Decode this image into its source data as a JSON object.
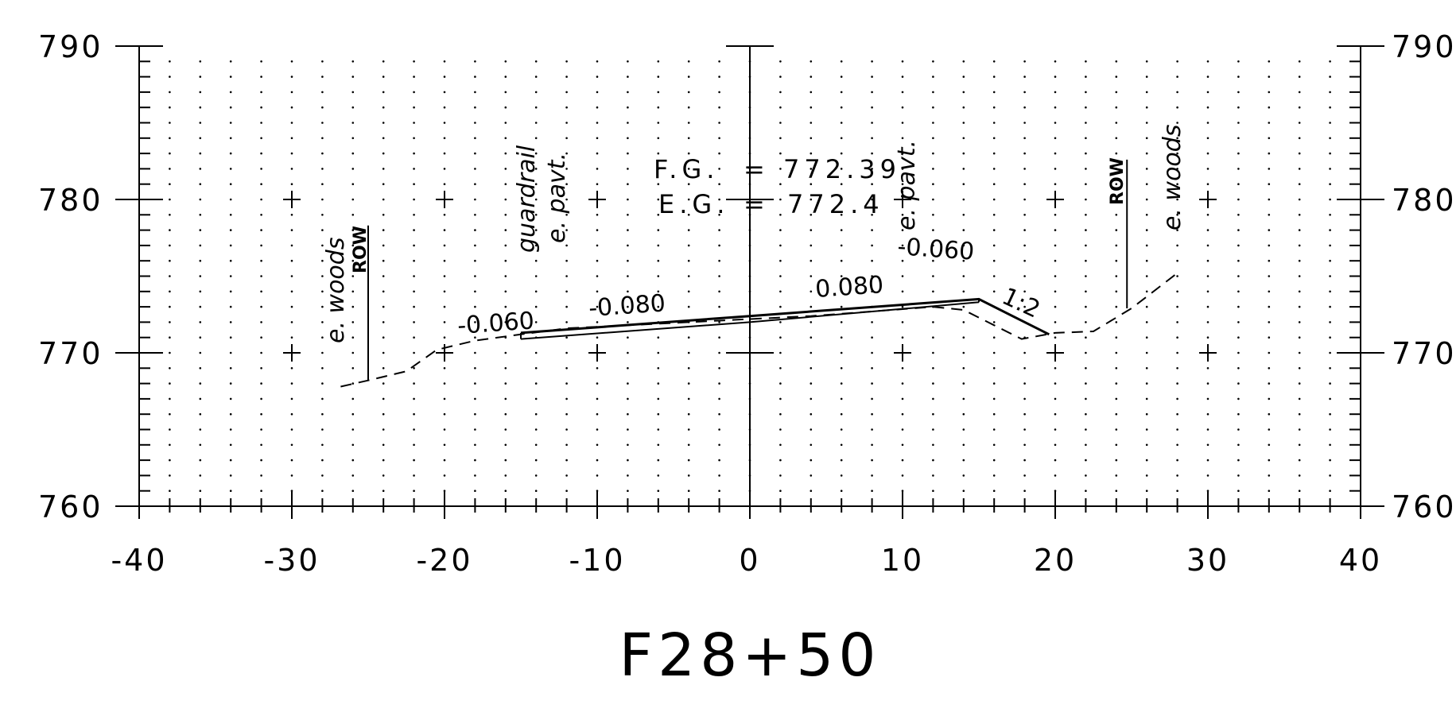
{
  "drawing": {
    "station": "F28+50",
    "x_ticks": [
      "-40",
      "-30",
      "-20",
      "-10",
      "0",
      "10",
      "20",
      "30",
      "40"
    ],
    "y_ticks_left": [
      "790",
      "780",
      "770",
      "760"
    ],
    "y_ticks_right": [
      "790",
      "780",
      "770",
      "760"
    ],
    "grades": {
      "fg_label": "F.G.",
      "fg_eq": "=",
      "fg_value": "772.39",
      "eg_label": "E.G.",
      "eg_eq": "=",
      "eg_value": "772.4"
    },
    "annotations": {
      "woods_left": "e. woods",
      "row_left": "ROW",
      "guardrail": "guardrail",
      "pavt_left": "e. pavt.",
      "pavt_right": "e. pavt.",
      "row_right": "ROW",
      "woods_right": "e. woods"
    },
    "slopes": {
      "s1": "-0.060",
      "s2": "-0.080",
      "s3": "0.080",
      "s4": "-0.060",
      "side": "1:2"
    }
  },
  "chart_data": {
    "type": "cross-section",
    "x_range": [
      -40,
      40
    ],
    "y_range": [
      760,
      790
    ],
    "grid": "dotted",
    "existing_ground": {
      "style": "dashed",
      "points": [
        [
          -26.8,
          767.8
        ],
        [
          -25,
          768.2
        ],
        [
          -22.5,
          768.8
        ],
        [
          -20.5,
          770.2
        ],
        [
          -18,
          770.8
        ],
        [
          -15,
          771.2
        ],
        [
          -12,
          771.6
        ],
        [
          -8,
          771.8
        ],
        [
          -4,
          772.0
        ],
        [
          0,
          772.2
        ],
        [
          4,
          772.4
        ],
        [
          8,
          772.7
        ],
        [
          12,
          773.0
        ],
        [
          14,
          772.8
        ],
        [
          16,
          771.8
        ],
        [
          17.8,
          770.9
        ],
        [
          20,
          771.3
        ],
        [
          22.5,
          771.4
        ],
        [
          25,
          772.9
        ],
        [
          28,
          775.2
        ]
      ]
    },
    "finished_grade_top": {
      "points": [
        [
          -15,
          771.3
        ],
        [
          0,
          772.4
        ],
        [
          15,
          773.5
        ],
        [
          19.6,
          771.2
        ]
      ]
    },
    "finished_grade_bottom": {
      "points": [
        [
          -15,
          770.9
        ],
        [
          0,
          772.0
        ],
        [
          15,
          773.3
        ]
      ]
    },
    "row_lines_x": [
      -25,
      24.7
    ]
  }
}
